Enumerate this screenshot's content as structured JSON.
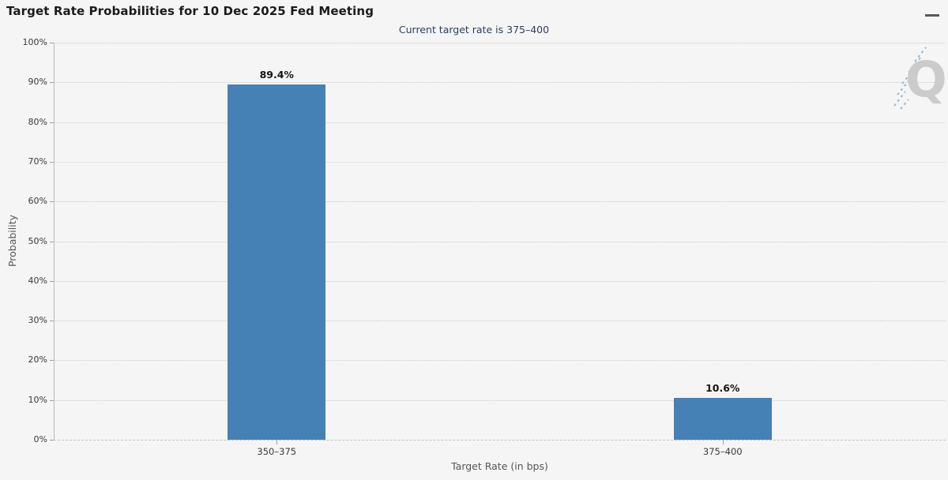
{
  "header": {
    "title": "Target Rate Probabilities for 10 Dec 2025 Fed Meeting"
  },
  "subtitle": "Current target rate is 375–400",
  "menu": {
    "icon": "hamburger-icon"
  },
  "watermark": {
    "letter": "Q"
  },
  "colors": {
    "background": "#f5f5f6",
    "bar": "#4681b6",
    "grid": "#cbcbcb",
    "subtitle_text": "#2e3f5e",
    "watermark_letter": "#cbcbcb",
    "watermark_dashes": "#8fbada"
  },
  "chart_data": {
    "type": "bar",
    "title": "Target Rate Probabilities for 10 Dec 2025 Fed Meeting",
    "subtitle": "Current target rate is 375–400",
    "categories": [
      "350–375",
      "375–400"
    ],
    "values": [
      89.4,
      10.6
    ],
    "value_labels": [
      "89.4%",
      "10.6%"
    ],
    "xlabel": "Target Rate (in bps)",
    "ylabel": "Probability",
    "ylim": [
      0,
      100
    ],
    "ytick_step": 10,
    "ytick_suffix": "%",
    "grid": "horizontal-dotted",
    "legend": "none"
  }
}
